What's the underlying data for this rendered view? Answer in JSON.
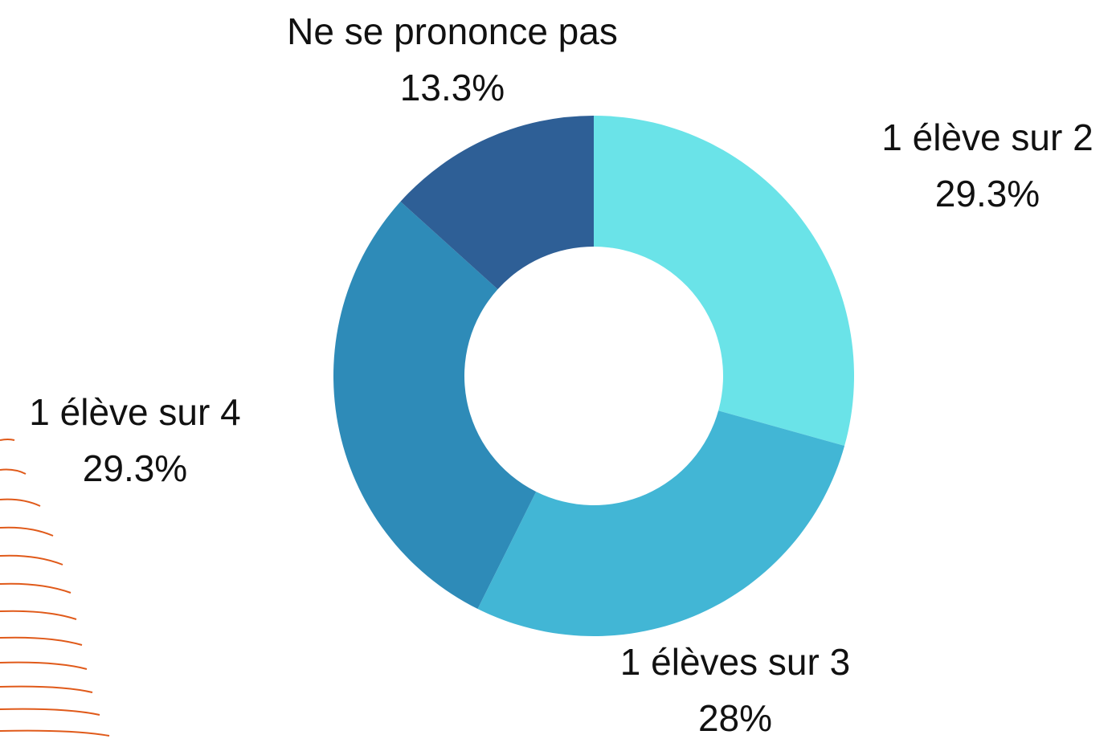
{
  "chart_data": {
    "type": "pie",
    "categories": [
      "1 élève sur 2",
      "1 élèves sur 3",
      "1 élève sur 4",
      "Ne se prononce pas"
    ],
    "values": [
      29.3,
      28,
      29.3,
      13.3
    ],
    "value_labels": [
      "29.3%",
      "28%",
      "29.3%",
      "13.3%"
    ],
    "colors": [
      "#6ae3e8",
      "#42b6d5",
      "#2e8bb8",
      "#2e5f96"
    ],
    "donut": true
  }
}
